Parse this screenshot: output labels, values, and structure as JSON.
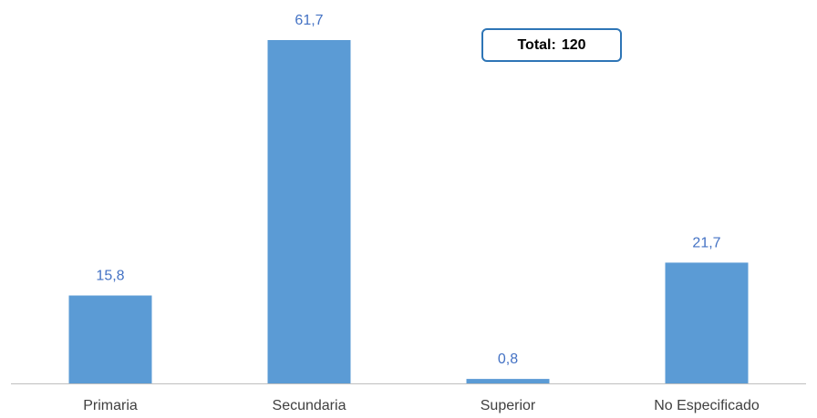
{
  "chart_data": {
    "type": "bar",
    "categories": [
      "Primaria",
      "Secundaria",
      "Superior",
      "No Especificado"
    ],
    "values": [
      15.8,
      61.7,
      0.8,
      21.7
    ],
    "value_labels": [
      "15,8",
      "61,7",
      "0,8",
      "21,7"
    ],
    "title": "",
    "xlabel": "",
    "ylabel": "",
    "ylim": [
      0,
      65
    ],
    "grid": false,
    "legend": "none",
    "bar_color": "#5b9bd5",
    "label_color": "#4472c4"
  },
  "annotation": {
    "total_label": "Total:",
    "total_value": "120"
  }
}
